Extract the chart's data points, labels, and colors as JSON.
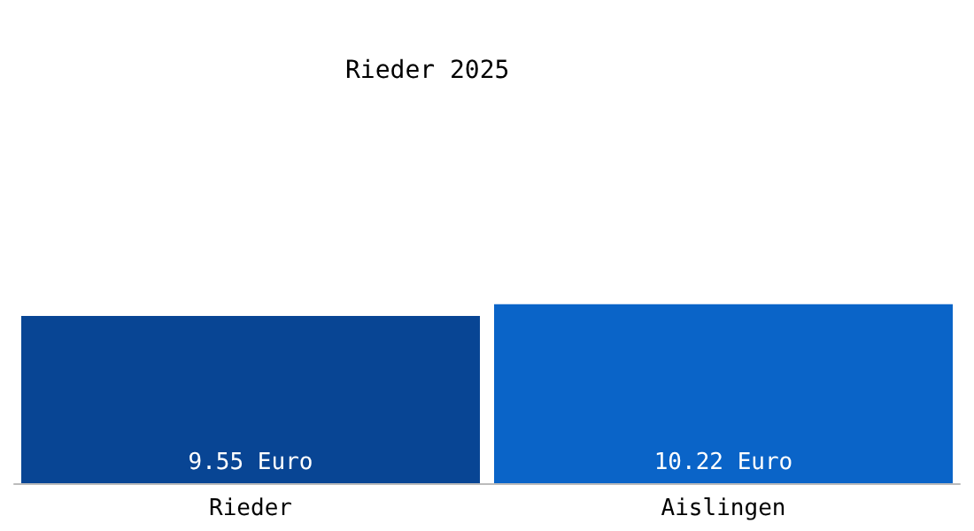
{
  "chart_data": {
    "type": "bar",
    "title": "Rieder 2025",
    "categories": [
      "Rieder",
      "Aislingen"
    ],
    "values": [
      9.55,
      10.22
    ],
    "colors": [
      "#084594",
      "#0a64c8"
    ],
    "value_labels": [
      "9.55 Euro",
      "10.22 Euro"
    ]
  }
}
